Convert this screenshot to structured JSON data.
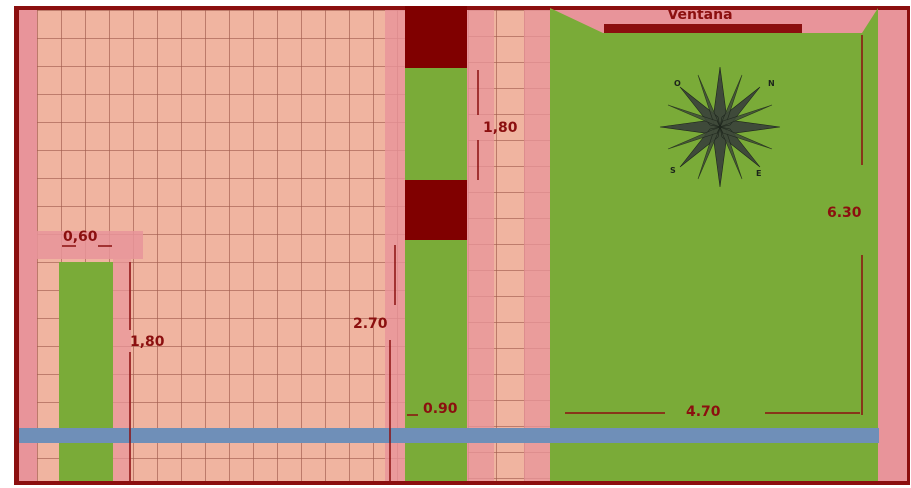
{
  "plan": {
    "window_label": "Ventana",
    "compass": {
      "north": "N",
      "south": "S",
      "east": "E",
      "west": "O"
    },
    "dimensions": {
      "left_bed_width": "0,60",
      "left_bed_length": "1,80",
      "center_strip_top": "1,80",
      "center_strip_length": "2.70",
      "center_strip_width": "0.90",
      "garden_length": "6.30",
      "garden_width": "4.70"
    }
  },
  "colors": {
    "border": "#8b0f0f",
    "tile": "#f0b4a0",
    "tile_grout": "#a05a4c",
    "pink": "#e8949a",
    "green": "#7aab38",
    "dark_red": "#800000",
    "water": "#6f8fb8",
    "compass": "#3f4a3a"
  }
}
